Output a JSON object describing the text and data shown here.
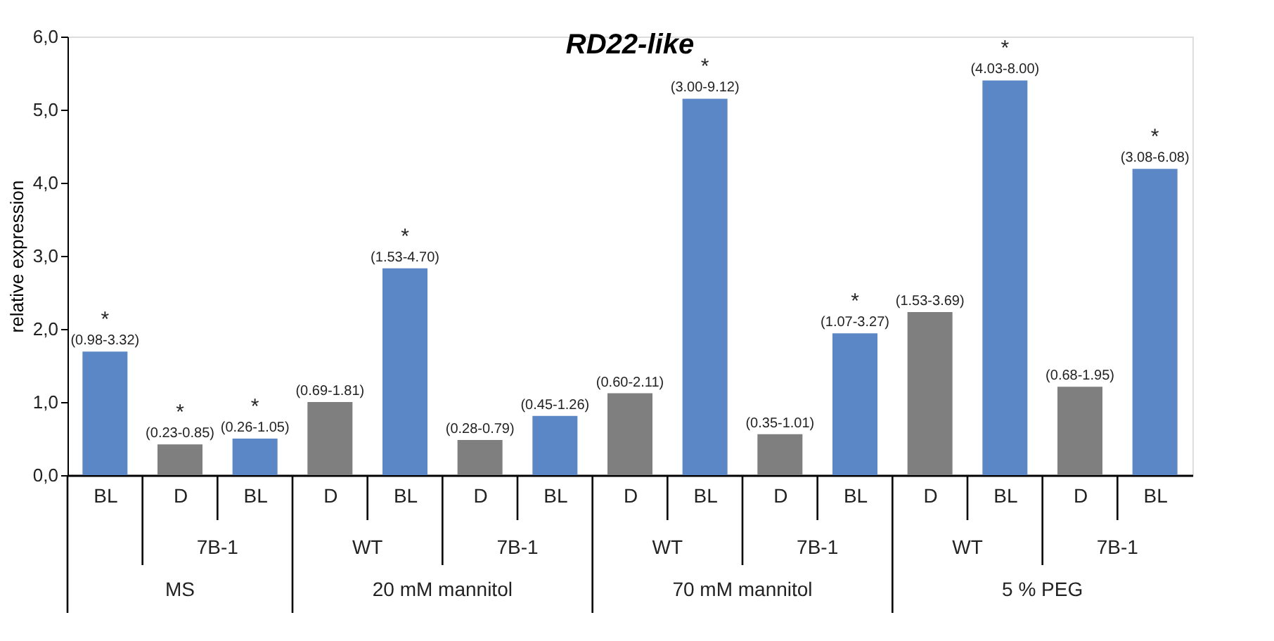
{
  "chart_data": {
    "type": "bar",
    "title": "RD22-like",
    "ylabel": "relative expression",
    "categories": [
      "BL",
      "D",
      "BL",
      "D",
      "BL",
      "D",
      "BL",
      "D",
      "BL",
      "D",
      "BL",
      "D",
      "BL",
      "D",
      "BL"
    ],
    "values": [
      1.69,
      0.42,
      0.5,
      1.0,
      2.83,
      0.48,
      0.81,
      1.12,
      5.15,
      0.56,
      1.94,
      2.23,
      5.4,
      1.21,
      4.19
    ],
    "colors": [
      "#5b87c6",
      "#7f7f7f",
      "#5b87c6",
      "#7f7f7f",
      "#5b87c6",
      "#7f7f7f",
      "#5b87c6",
      "#7f7f7f",
      "#5b87c6",
      "#7f7f7f",
      "#5b87c6",
      "#7f7f7f",
      "#5b87c6",
      "#7f7f7f",
      "#5b87c6"
    ],
    "value_labels": [
      "*\n(0.98-3.32)",
      "*\n(0.23-0.85)",
      "*\n(0.26-1.05)",
      "(0.69-1.81)",
      "*\n(1.53-4.70)",
      "(0.28-0.79)",
      "(0.45-1.26)",
      "(0.60-2.11)",
      "*\n(3.00-9.12)",
      "(0.35-1.01)",
      "*\n(1.07-3.27)",
      "(1.53-3.69)",
      "*\n(4.03-8.00)",
      "(0.68-1.95)",
      "*\n(3.08-6.08)"
    ],
    "annotations": [
      "7B-1",
      "WT",
      "7B-1",
      "WT",
      "7B-1",
      "WT",
      "7B-1",
      "MS",
      "20 mM mannitol",
      "70 mM mannitol",
      "5 % PEG"
    ],
    "ylim": [
      0,
      6
    ],
    "yticks": [
      {
        "value": 0,
        "label": "0,0"
      },
      {
        "value": 1,
        "label": "1,0"
      },
      {
        "value": 2,
        "label": "2,0"
      },
      {
        "value": 3,
        "label": "3,0"
      },
      {
        "value": 4,
        "label": "4,0"
      },
      {
        "value": 5,
        "label": "5,0"
      },
      {
        "value": 6,
        "label": "6,0"
      }
    ],
    "grid": false
  }
}
